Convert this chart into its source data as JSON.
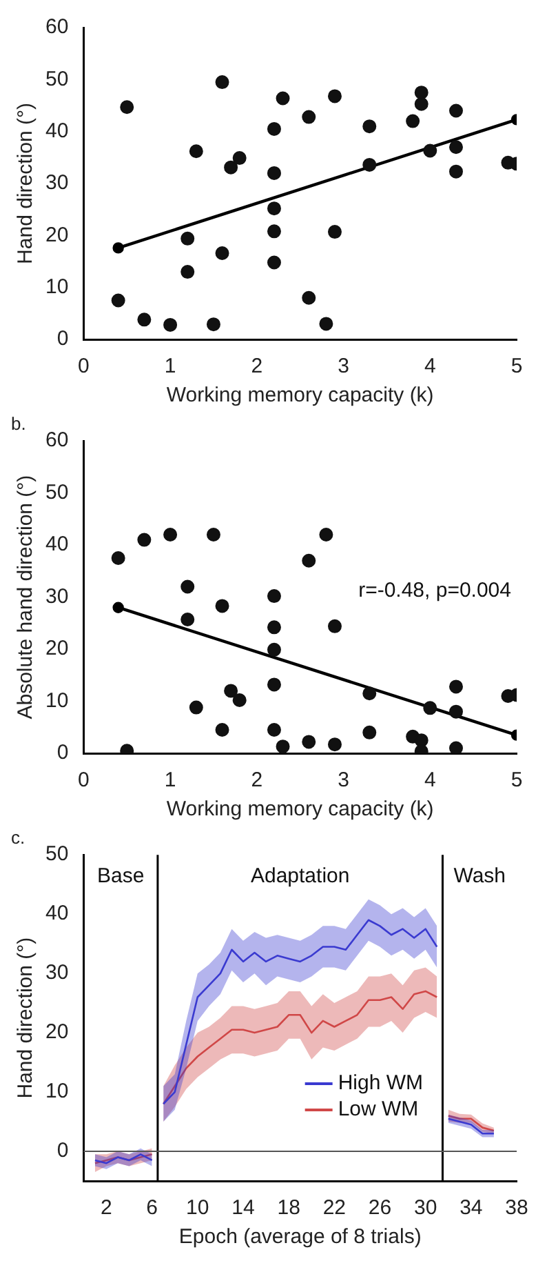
{
  "chart_data": [
    {
      "type": "scatter",
      "xlabel": "Working memory capacity (k)",
      "ylabel": "Hand direction (°)",
      "xlim": [
        0,
        5
      ],
      "ylim": [
        0,
        60
      ],
      "xticks": [
        0,
        1,
        2,
        3,
        4,
        5
      ],
      "yticks": [
        0,
        10,
        20,
        30,
        40,
        50,
        60
      ],
      "grid": false,
      "legend": false,
      "marker": "circle",
      "series": [
        {
          "type": "scatter",
          "color": "#111111",
          "x": [
            0.4,
            0.5,
            0.7,
            1.0,
            1.2,
            1.2,
            1.3,
            1.5,
            1.6,
            1.6,
            1.7,
            1.8,
            2.2,
            2.2,
            2.2,
            2.2,
            2.2,
            2.3,
            2.6,
            2.6,
            2.8,
            2.9,
            2.9,
            3.3,
            3.3,
            3.8,
            3.9,
            3.9,
            4.0,
            4.3,
            4.3,
            4.3,
            4.9,
            5.0
          ],
          "values": [
            7.5,
            44.7,
            3.8,
            2.8,
            19.4,
            13,
            36.2,
            2.9,
            49.5,
            16.6,
            33.1,
            34.9,
            40.5,
            32,
            25.2,
            20.8,
            14.8,
            46.4,
            42.8,
            8,
            3,
            46.8,
            20.7,
            41,
            33.6,
            42,
            47.5,
            45.3,
            36.3,
            44,
            37,
            32.3,
            34,
            33.8
          ]
        },
        {
          "type": "line",
          "color": "#000000",
          "x": [
            0.4,
            5
          ],
          "values": [
            17.6,
            42.3
          ]
        }
      ]
    },
    {
      "type": "scatter",
      "title": "b.",
      "xlabel": "Working memory capacity (k)",
      "ylabel": "Absolute hand direction (°)",
      "xlim": [
        0,
        5
      ],
      "ylim": [
        0,
        60
      ],
      "xticks": [
        0,
        1,
        2,
        3,
        4,
        5
      ],
      "yticks": [
        0,
        10,
        20,
        30,
        40,
        50,
        60
      ],
      "grid": false,
      "legend": false,
      "marker": "circle",
      "annotations": [
        "r=-0.48, p=0.004"
      ],
      "series": [
        {
          "type": "scatter",
          "color": "#111111",
          "x": [
            0.4,
            0.5,
            0.7,
            1.0,
            1.2,
            1.2,
            1.3,
            1.5,
            1.6,
            1.6,
            1.7,
            1.8,
            2.2,
            2.2,
            2.2,
            2.2,
            2.2,
            2.3,
            2.6,
            2.6,
            2.8,
            2.9,
            2.9,
            3.3,
            3.3,
            3.8,
            3.9,
            3.9,
            4.0,
            4.3,
            4.3,
            4.3,
            4.9,
            5.0
          ],
          "values": [
            37.5,
            0.5,
            41,
            42,
            32,
            25.7,
            8.8,
            42,
            28.3,
            4.5,
            12,
            10.2,
            30.2,
            24.2,
            19.9,
            13.2,
            4.5,
            1.3,
            37,
            2.2,
            42,
            24.4,
            1.7,
            11.5,
            4,
            3.2,
            2.5,
            0.4,
            8.7,
            12.8,
            8,
            1,
            11,
            11.2
          ]
        },
        {
          "type": "line",
          "color": "#000000",
          "x": [
            0.4,
            5
          ],
          "values": [
            28,
            3.5
          ]
        }
      ]
    },
    {
      "type": "line",
      "title": "c.",
      "xlabel": "Epoch (average of 8 trials)",
      "ylabel": "Hand direction (°)",
      "xlim": [
        0,
        38
      ],
      "ylim": [
        -5,
        50
      ],
      "xticks": [
        2,
        6,
        10,
        14,
        18,
        22,
        26,
        30,
        34,
        38
      ],
      "yticks": [
        0,
        10,
        20,
        30,
        40,
        50
      ],
      "grid": false,
      "legend": "bottom right",
      "marker": "none",
      "line_style": "solid",
      "x": [
        1,
        2,
        3,
        4,
        5,
        6,
        6.5,
        7,
        8,
        9,
        10,
        11,
        12,
        13,
        14,
        15,
        16,
        17,
        18,
        19,
        20,
        21,
        22,
        23,
        24,
        25,
        26,
        27,
        28,
        29,
        30,
        31,
        31.5,
        32,
        33,
        34,
        35,
        36
      ],
      "ref_lines": [
        {
          "axis": "x",
          "value": 6.5,
          "color": "#000000"
        },
        {
          "axis": "x",
          "value": 31.5,
          "color": "#000000"
        },
        {
          "axis": "y",
          "value": 0,
          "color": "#555555"
        }
      ],
      "annotations": [
        "Base",
        "Adaptation",
        "Wash"
      ],
      "series": [
        {
          "name": "High WM",
          "color": "#3a3ad0",
          "values": [
            -1.5,
            -2,
            -1,
            -1.5,
            -0.5,
            -1.5,
            null,
            8,
            10,
            18,
            26,
            28,
            30,
            34,
            32,
            33.5,
            32,
            33,
            32.5,
            32,
            33,
            34.5,
            34.5,
            34,
            36.5,
            39,
            38,
            36.5,
            37.5,
            36,
            37.5,
            34.5,
            null,
            5.5,
            5,
            4.5,
            3,
            3
          ],
          "lower": [
            -2.5,
            -3,
            -2,
            -2.5,
            -1.5,
            -2.5,
            null,
            5,
            7,
            14,
            22,
            24.5,
            26.5,
            30.5,
            28.5,
            30,
            28,
            29.5,
            29,
            28.5,
            29.5,
            31,
            31,
            30.5,
            33,
            35.5,
            34.5,
            33,
            34,
            32.5,
            34,
            31,
            null,
            4.8,
            4.3,
            3.8,
            2.4,
            2.4
          ],
          "upper": [
            -0.5,
            -1,
            0,
            -0.5,
            0.5,
            -0.5,
            null,
            11,
            13,
            22,
            30,
            31.5,
            33.5,
            37.5,
            35.5,
            37,
            36,
            36.5,
            36,
            35.5,
            36.5,
            38,
            38,
            37.5,
            40,
            42.5,
            41.5,
            40,
            41,
            39.5,
            41,
            38,
            null,
            6.2,
            5.7,
            5.2,
            3.6,
            3.6
          ]
        },
        {
          "name": "Low WM",
          "color": "#d04848",
          "values": [
            -2,
            -1.5,
            -1,
            -1.5,
            -1,
            -0.5,
            null,
            8,
            11,
            14,
            16,
            17.5,
            19,
            20.5,
            20.5,
            20,
            20.5,
            21,
            23,
            23,
            20,
            22,
            21,
            22,
            23,
            25.5,
            25.5,
            26,
            24,
            26.5,
            27,
            26,
            null,
            6,
            5.5,
            5.5,
            4,
            3.5
          ],
          "lower": [
            -3.5,
            -2.5,
            -2,
            -2.5,
            -2,
            -1.5,
            null,
            5,
            7.5,
            10.5,
            12.5,
            14,
            15.5,
            16.5,
            16.5,
            16,
            16.5,
            17,
            19,
            19,
            15.5,
            17.5,
            17,
            18,
            19,
            21,
            21,
            22,
            20,
            22.5,
            23.5,
            22.5,
            null,
            5,
            4.8,
            4.8,
            3.3,
            3
          ],
          "upper": [
            -0.5,
            -0.5,
            0,
            -0.5,
            0,
            0.5,
            null,
            11,
            14.5,
            17.5,
            20,
            21,
            22.5,
            24.5,
            24.5,
            24,
            24.5,
            25,
            27,
            27,
            24.5,
            26.5,
            25,
            26,
            27,
            29.5,
            29.5,
            30,
            28,
            30.5,
            31,
            29.5,
            null,
            7,
            6.3,
            6.2,
            4.7,
            4
          ]
        }
      ]
    }
  ]
}
